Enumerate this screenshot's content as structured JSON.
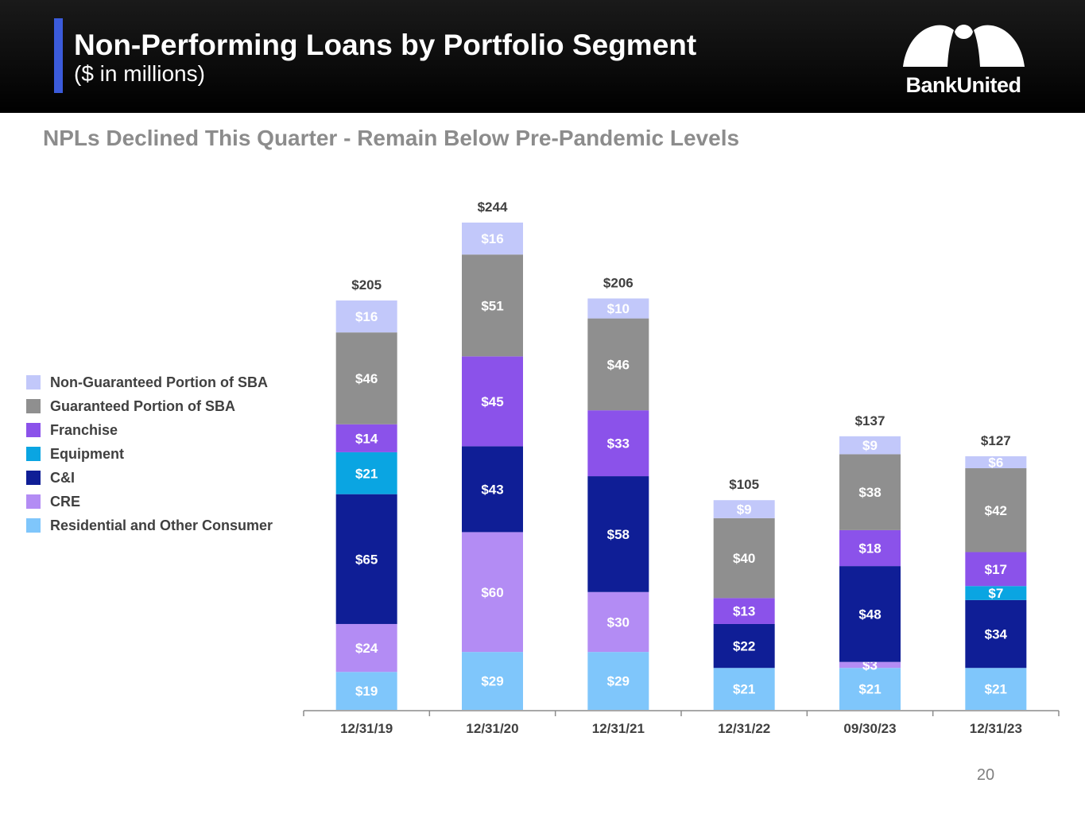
{
  "header": {
    "title": "Non-Performing Loans by Portfolio Segment",
    "subtitle": "($ in millions)",
    "logo_text": "BankUnited"
  },
  "headline": "NPLs Declined This Quarter - Remain Below Pre-Pandemic Levels",
  "page_number": "20",
  "colors": {
    "header_bg": "#000000",
    "accent": "#3b5bdb",
    "headline": "#8c8c8c"
  },
  "chart_data": {
    "type": "bar",
    "stacked": true,
    "categories": [
      "12/31/19",
      "12/31/20",
      "12/31/21",
      "12/31/22",
      "09/30/23",
      "12/31/23"
    ],
    "series": [
      {
        "name": "Residential and Other Consumer",
        "color": "#7fc6fb",
        "values": [
          19,
          29,
          29,
          21,
          21,
          21
        ],
        "labels": [
          "$19",
          "$29",
          "$29",
          "$21",
          "$21",
          "$21"
        ]
      },
      {
        "name": "CRE",
        "color": "#b38cf4",
        "values": [
          24,
          60,
          30,
          0,
          3,
          0
        ],
        "labels": [
          "$24",
          "$60",
          "$30",
          "",
          "$3",
          ""
        ]
      },
      {
        "name": "C&I",
        "color": "#0f1e96",
        "values": [
          65,
          43,
          58,
          22,
          48,
          34
        ],
        "labels": [
          "$65",
          "$43",
          "$58",
          "$22",
          "$48",
          "$34"
        ]
      },
      {
        "name": "Equipment",
        "color": "#0aa5e2",
        "values": [
          21,
          0,
          0,
          0,
          0,
          7
        ],
        "labels": [
          "$21",
          "",
          "",
          "",
          "",
          "$7"
        ]
      },
      {
        "name": "Franchise",
        "color": "#8b52ea",
        "values": [
          14,
          45,
          33,
          13,
          18,
          17
        ],
        "labels": [
          "$14",
          "$45",
          "$33",
          "$13",
          "$18",
          "$17"
        ]
      },
      {
        "name": "Guaranteed Portion of SBA",
        "color": "#8f8f8f",
        "values": [
          46,
          51,
          46,
          40,
          38,
          42
        ],
        "labels": [
          "$46",
          "$51",
          "$46",
          "$40",
          "$38",
          "$42"
        ]
      },
      {
        "name": "Non-Guaranteed Portion of SBA",
        "color": "#c2c8fa",
        "values": [
          16,
          16,
          10,
          9,
          9,
          6
        ],
        "labels": [
          "$16",
          "$16",
          "$10",
          "$9",
          "$9",
          "$6"
        ]
      }
    ],
    "totals": [
      "$205",
      "$244",
      "$206",
      "$105",
      "$137",
      "$127"
    ],
    "legend_order": [
      "Non-Guaranteed Portion of SBA",
      "Guaranteed Portion of SBA",
      "Franchise",
      "Equipment",
      "C&I",
      "CRE",
      "Residential and Other Consumer"
    ],
    "legend_position": "left",
    "ylim": [
      0,
      244
    ],
    "grid": false
  }
}
